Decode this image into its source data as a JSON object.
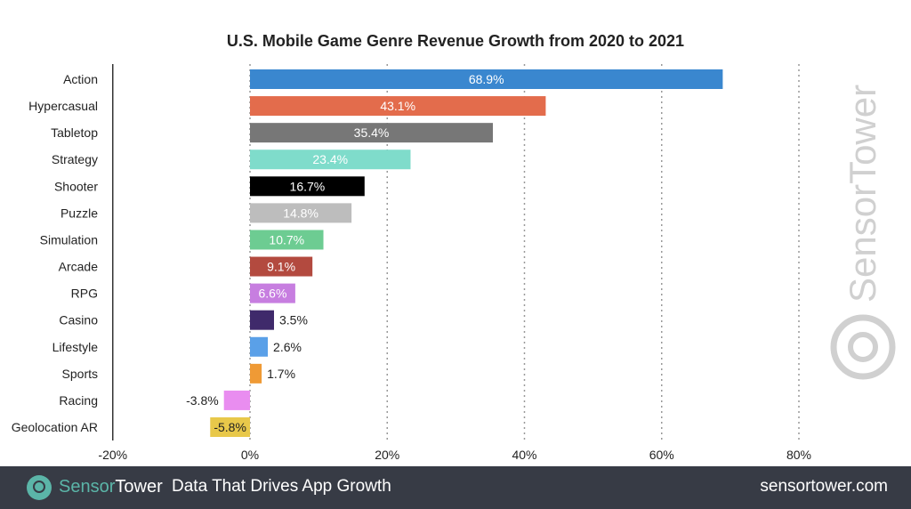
{
  "chart_data": {
    "type": "bar",
    "orientation": "horizontal",
    "title": "U.S. Mobile Game Genre Revenue Growth from 2020 to 2021",
    "categories": [
      "Action",
      "Hypercasual",
      "Tabletop",
      "Strategy",
      "Shooter",
      "Puzzle",
      "Simulation",
      "Arcade",
      "RPG",
      "Casino",
      "Lifestyle",
      "Sports",
      "Racing",
      "Geolocation AR"
    ],
    "values": [
      68.9,
      43.1,
      35.4,
      23.4,
      16.7,
      14.8,
      10.7,
      9.1,
      6.6,
      3.5,
      2.6,
      1.7,
      -3.8,
      -5.8
    ],
    "data_labels": [
      "68.9%",
      "43.1%",
      "35.4%",
      "23.4%",
      "16.7%",
      "14.8%",
      "10.7%",
      "9.1%",
      "6.6%",
      "3.5%",
      "2.6%",
      "1.7%",
      "-3.8%",
      "-5.8%"
    ],
    "colors": [
      "#3a87cf",
      "#e36c4c",
      "#777777",
      "#7fdccb",
      "#000000",
      "#bdbdbd",
      "#6dcc92",
      "#b34a3f",
      "#c77ee0",
      "#3f2a6b",
      "#5aa0e8",
      "#ef9a35",
      "#e98df0",
      "#e8c84a"
    ],
    "xlim": [
      -20,
      90
    ],
    "xticks": [
      -20,
      0,
      20,
      40,
      60,
      80
    ],
    "xtick_labels": [
      "-20%",
      "0%",
      "20%",
      "40%",
      "60%",
      "80%"
    ],
    "xlabel": "",
    "ylabel": "",
    "grid": "vertical dotted"
  },
  "watermark": "SensorTower",
  "footer": {
    "brand_a": "Sensor",
    "brand_b": "Tower",
    "tagline": "Data That Drives App Growth",
    "url": "sensortower.com",
    "logo_color": "#5bb5a8",
    "bg_color": "#373b45"
  }
}
